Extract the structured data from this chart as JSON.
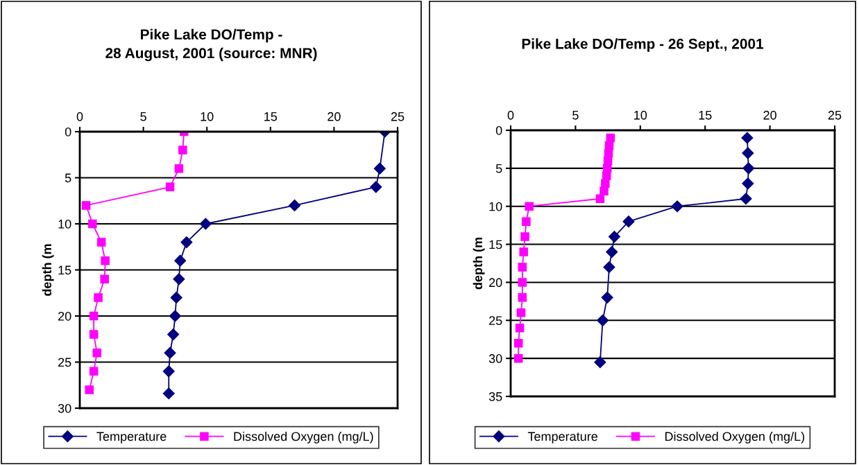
{
  "chart_data": [
    {
      "type": "line",
      "title": "Pike Lake DO/Temp -\n28 August, 2001 (source: MNR)",
      "ylabel": "depth (m",
      "xlim": [
        0,
        25
      ],
      "xticks": [
        0,
        5,
        10,
        15,
        20,
        25
      ],
      "ylim": [
        30,
        0
      ],
      "yticks": [
        0,
        5,
        10,
        15,
        20,
        25,
        30
      ],
      "grid": "y",
      "legend": "bottom",
      "series": [
        {
          "name": "Temperature",
          "color": "#000080",
          "marker": "diamond",
          "x": [
            24.0,
            23.6,
            23.3,
            16.9,
            9.9,
            8.4,
            7.9,
            7.8,
            7.6,
            7.5,
            7.35,
            7.1,
            7.0,
            7.0
          ],
          "values": [
            0,
            4,
            6,
            8,
            10,
            12,
            14,
            16,
            18,
            20,
            22,
            24,
            26,
            28.4
          ]
        },
        {
          "name": "Dissolved Oxygen (mg/L)",
          "color": "#ff00ff",
          "marker": "square",
          "x": [
            8.2,
            8.1,
            7.8,
            7.1,
            0.5,
            1.0,
            1.7,
            2.0,
            1.95,
            1.45,
            1.1,
            1.1,
            1.35,
            1.1,
            0.75
          ],
          "values": [
            0,
            2,
            4,
            6,
            8,
            10,
            12,
            14,
            16,
            18,
            20,
            22,
            24,
            26,
            28
          ]
        }
      ]
    },
    {
      "type": "line",
      "title": "Pike Lake DO/Temp - 26 Sept., 2001",
      "ylabel": "depth (m",
      "xlim": [
        0,
        25
      ],
      "xticks": [
        0,
        5,
        10,
        15,
        20,
        25
      ],
      "ylim": [
        35,
        0
      ],
      "yticks": [
        0,
        5,
        10,
        15,
        20,
        25,
        30,
        35
      ],
      "grid": "y",
      "legend": "bottom",
      "series": [
        {
          "name": "Temperature",
          "color": "#000080",
          "marker": "diamond",
          "x": [
            18.25,
            18.3,
            18.35,
            18.3,
            18.15,
            12.85,
            9.1,
            8.0,
            7.8,
            7.6,
            7.45,
            7.1,
            6.9
          ],
          "values": [
            1,
            3,
            5,
            7,
            9,
            10,
            12,
            14,
            16,
            18,
            22,
            25,
            30.5
          ]
        },
        {
          "name": "Dissolved Oxygen (mg/L)",
          "color": "#ff00ff",
          "marker": "square",
          "x": [
            7.7,
            7.6,
            7.55,
            7.5,
            7.45,
            7.4,
            7.3,
            7.2,
            6.9,
            1.43,
            1.2,
            1.1,
            1.0,
            0.9,
            0.9,
            0.9,
            0.8,
            0.7,
            0.6,
            0.6
          ],
          "values": [
            1,
            2,
            3,
            4,
            5,
            6,
            7,
            8,
            9,
            10,
            12,
            14,
            16,
            18,
            20,
            22,
            24,
            26,
            28,
            30
          ]
        }
      ]
    }
  ]
}
